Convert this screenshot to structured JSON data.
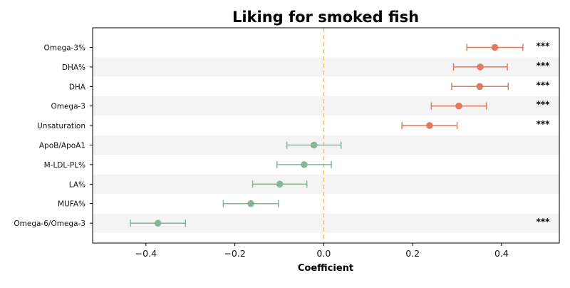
{
  "chart_data": {
    "type": "forest",
    "title": "Liking for smoked fish",
    "xlabel": "Coefficient",
    "ylabel": "",
    "xlim": [
      -0.52,
      0.53
    ],
    "xticks": [
      -0.4,
      -0.2,
      0.0,
      0.2,
      0.4
    ],
    "xtick_labels": [
      "−0.4",
      "−0.2",
      "0.0",
      "0.2",
      "0.4"
    ],
    "reference_line": 0.0,
    "grid": false,
    "rows": [
      {
        "label": "Omega-3%",
        "estimate": 0.385,
        "ci_low": 0.322,
        "ci_high": 0.448,
        "significance": "***",
        "group": "positive"
      },
      {
        "label": "DHA%",
        "estimate": 0.352,
        "ci_low": 0.292,
        "ci_high": 0.413,
        "significance": "***",
        "group": "positive"
      },
      {
        "label": "DHA",
        "estimate": 0.351,
        "ci_low": 0.288,
        "ci_high": 0.415,
        "significance": "***",
        "group": "positive"
      },
      {
        "label": "Omega-3",
        "estimate": 0.304,
        "ci_low": 0.242,
        "ci_high": 0.366,
        "significance": "***",
        "group": "positive"
      },
      {
        "label": "Unsaturation",
        "estimate": 0.238,
        "ci_low": 0.176,
        "ci_high": 0.3,
        "significance": "***",
        "group": "positive"
      },
      {
        "label": "ApoB/ApoA1",
        "estimate": -0.022,
        "ci_low": -0.083,
        "ci_high": 0.039,
        "significance": "",
        "group": "negative"
      },
      {
        "label": "M-LDL-PL%",
        "estimate": -0.044,
        "ci_low": -0.105,
        "ci_high": 0.017,
        "significance": "",
        "group": "negative"
      },
      {
        "label": "LA%",
        "estimate": -0.099,
        "ci_low": -0.16,
        "ci_high": -0.038,
        "significance": "",
        "group": "negative"
      },
      {
        "label": "MUFA%",
        "estimate": -0.164,
        "ci_low": -0.226,
        "ci_high": -0.102,
        "significance": "",
        "group": "negative"
      },
      {
        "label": "Omega-6/Omega-3",
        "estimate": -0.373,
        "ci_low": -0.435,
        "ci_high": -0.311,
        "significance": "***",
        "group": "negative"
      }
    ],
    "colors": {
      "positive": "#e07b5f",
      "negative": "#86b59a",
      "reference_line": "#f5c27a",
      "row_stripe": "#f4f4f4",
      "axis": "#000000"
    }
  }
}
